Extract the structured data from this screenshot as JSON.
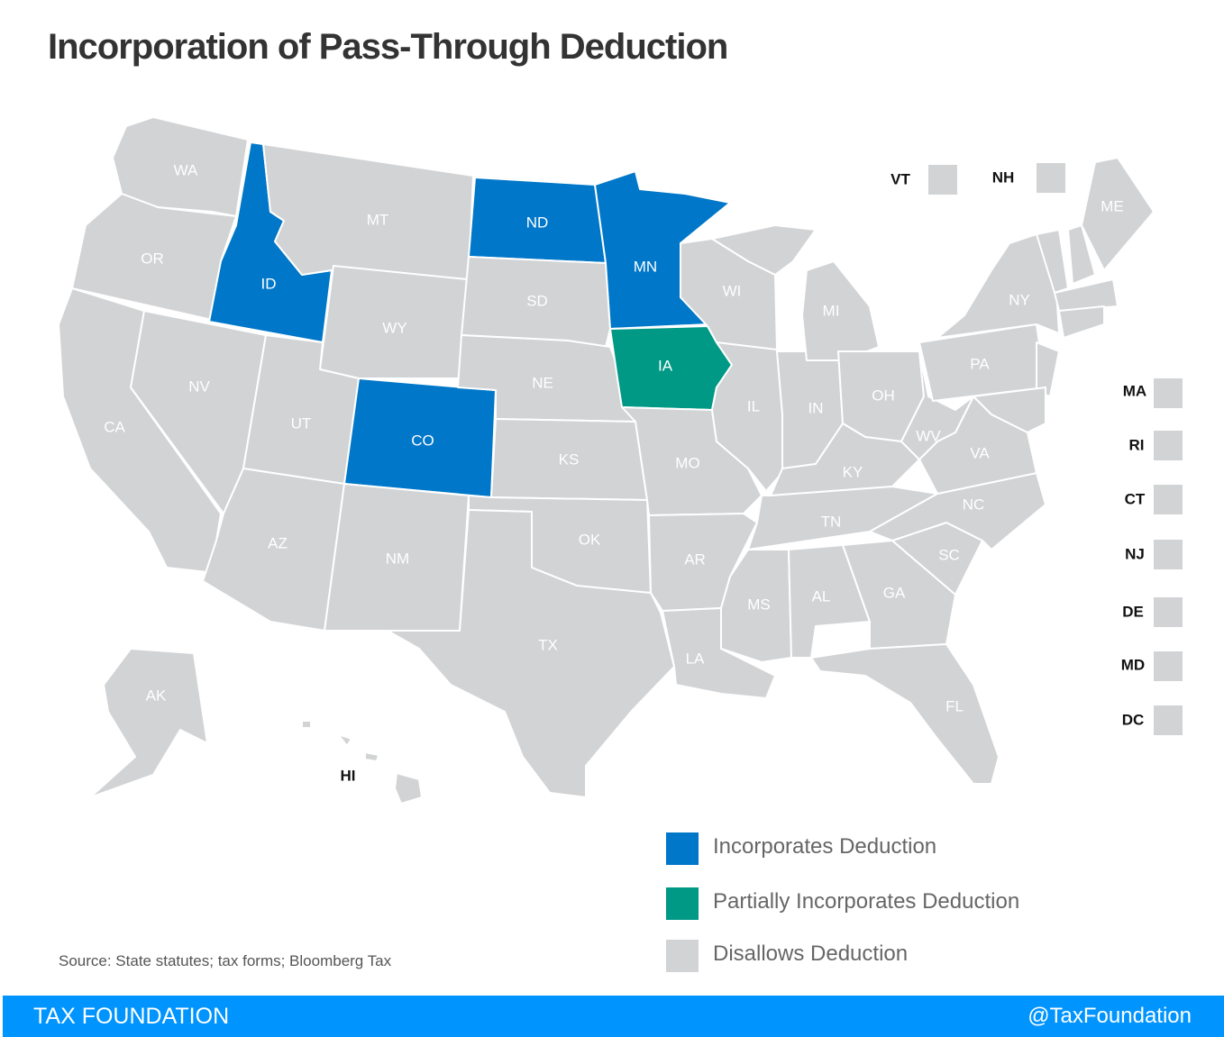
{
  "title": "Incorporation of Pass-Through Deduction",
  "colors": {
    "incorporates": "#0077c8",
    "partial": "#009985",
    "disallows": "#d2d3d5",
    "footer": "#0094ff"
  },
  "legend": [
    {
      "key": "incorporates",
      "label": "Incorporates Deduction"
    },
    {
      "key": "partial",
      "label": "Partially Incorporates Deduction"
    },
    {
      "key": "disallows",
      "label": "Disallows Deduction"
    }
  ],
  "states": {
    "WA": "disallows",
    "OR": "disallows",
    "CA": "disallows",
    "ID": "incorporates",
    "NV": "disallows",
    "MT": "disallows",
    "WY": "disallows",
    "UT": "disallows",
    "AZ": "disallows",
    "CO": "incorporates",
    "NM": "disallows",
    "ND": "incorporates",
    "SD": "disallows",
    "NE": "disallows",
    "KS": "disallows",
    "OK": "disallows",
    "TX": "disallows",
    "MN": "incorporates",
    "IA": "partial",
    "WI": "disallows",
    "MO": "disallows",
    "AR": "disallows",
    "LA": "disallows",
    "IL": "disallows",
    "IN": "disallows",
    "MI": "disallows",
    "OH": "disallows",
    "KY": "disallows",
    "TN": "disallows",
    "MS": "disallows",
    "AL": "disallows",
    "GA": "disallows",
    "FL": "disallows",
    "SC": "disallows",
    "NC": "disallows",
    "VA": "disallows",
    "WV": "disallows",
    "PA": "disallows",
    "NY": "disallows",
    "ME": "disallows",
    "AK": "disallows",
    "HI": "disallows",
    "VT": "disallows",
    "NH": "disallows",
    "MA": "disallows",
    "RI": "disallows",
    "CT": "disallows",
    "NJ": "disallows",
    "DE": "disallows",
    "MD": "disallows",
    "DC": "disallows"
  },
  "source": "Source: State statutes; tax forms; Bloomberg Tax",
  "footer": {
    "left": "TAX FOUNDATION",
    "right": "@TaxFoundation"
  }
}
